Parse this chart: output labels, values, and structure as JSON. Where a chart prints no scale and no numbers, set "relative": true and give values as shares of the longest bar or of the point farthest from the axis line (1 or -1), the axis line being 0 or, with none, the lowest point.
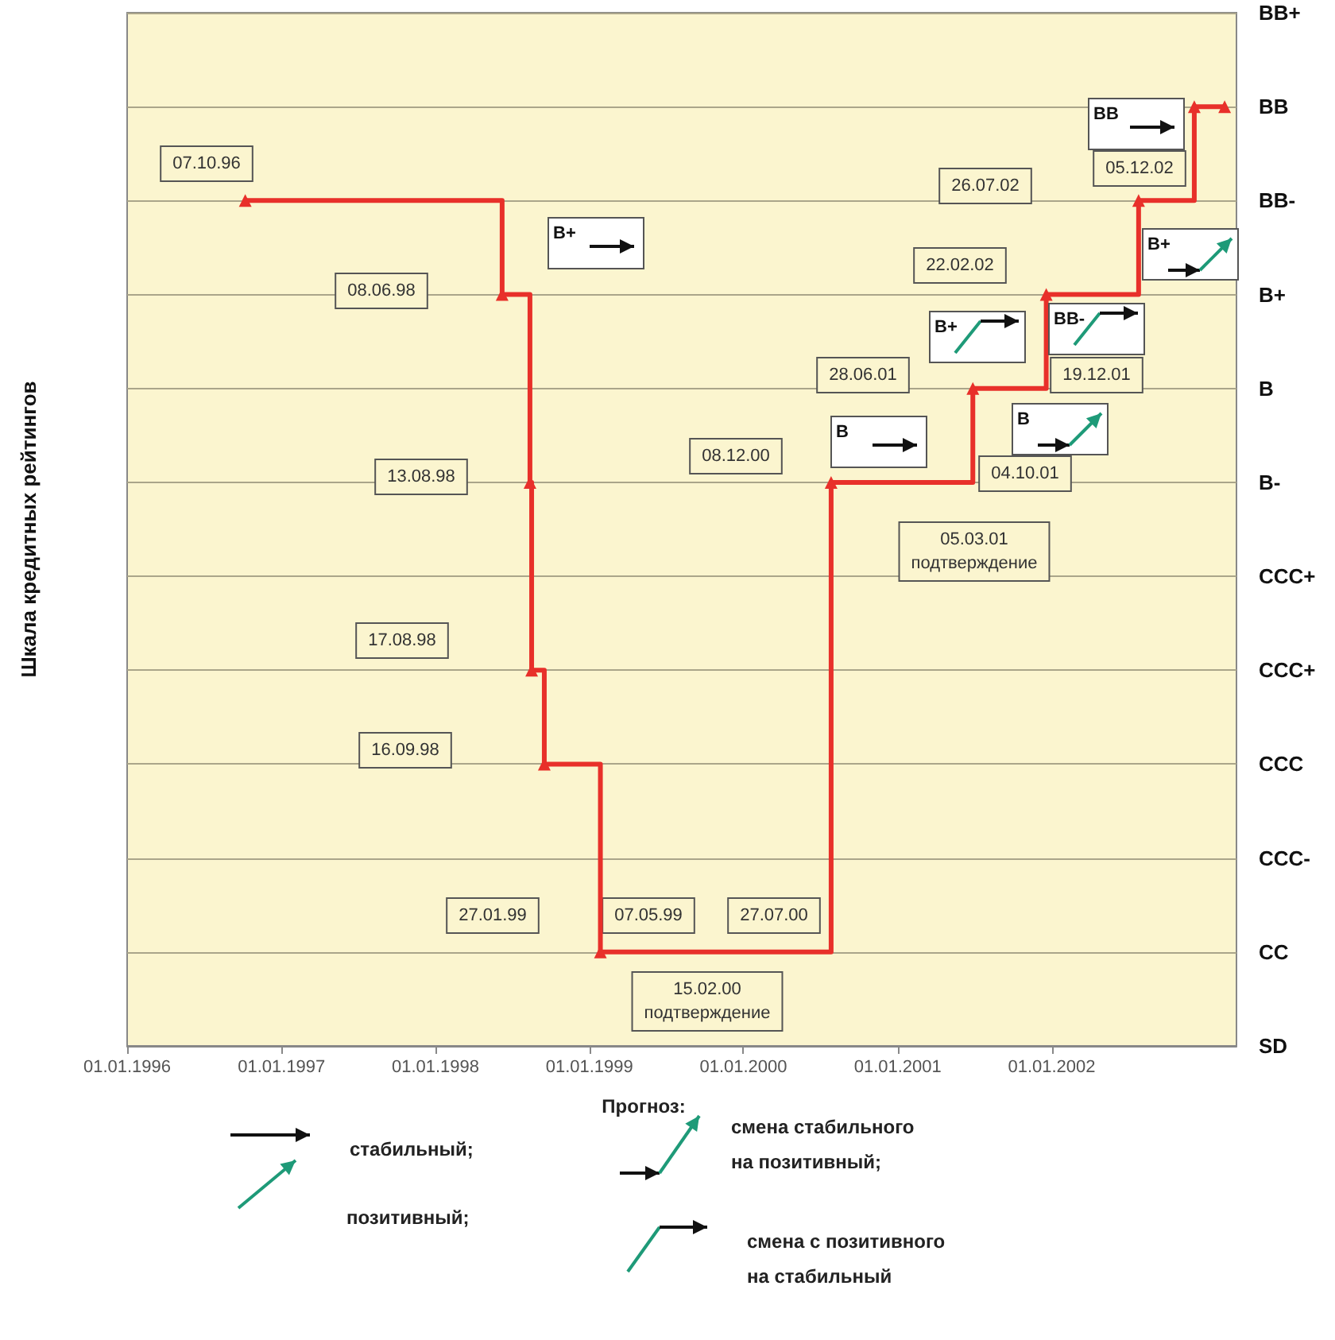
{
  "chart_data": {
    "type": "step",
    "ylabel": "Шкала кредитных рейтингов",
    "xlim": [
      "1996-01-01",
      "2003-03-15"
    ],
    "xticks": [
      {
        "value": "1996-01-01",
        "label": "01.01.1996"
      },
      {
        "value": "1997-01-01",
        "label": "01.01.1997"
      },
      {
        "value": "1998-01-01",
        "label": "01.01.1998"
      },
      {
        "value": "1999-01-01",
        "label": "01.01.1999"
      },
      {
        "value": "2000-01-01",
        "label": "01.01.2000"
      },
      {
        "value": "2001-01-01",
        "label": "01.01.2001"
      },
      {
        "value": "2002-01-01",
        "label": "01.01.2002"
      }
    ],
    "relative": true,
    "grid": "y",
    "marker": "triangle",
    "line_style": "solid",
    "series": [
      {
        "color": "#e8302a",
        "x": [
          "1996-10-07",
          "1998-06-08",
          "1998-08-13",
          "1998-08-17",
          "1998-09-16",
          "1999-01-27",
          "2000-07-27",
          "2001-06-28",
          "2001-12-19",
          "2002-07-26",
          "2002-12-05",
          "2003-02-15"
        ],
        "values": [
          0.9,
          0.8,
          0.6,
          0.4,
          0.3,
          0.1,
          0.6,
          0.7,
          0.8,
          0.9,
          1,
          1
        ]
      }
    ],
    "annotations": [
      "07.10.96",
      "08.06.98",
      "13.08.98",
      "17.08.98",
      "16.09.98",
      "27.01.99",
      "07.05.99",
      "27.07.00",
      "15.02.00\nподтверждение",
      "08.12.00",
      "05.03.01\nподтверждение",
      "04.10.01",
      "28.06.01",
      "19.12.01",
      "22.02.02",
      "26.07.02",
      "05.12.02",
      "B+",
      "B",
      "B+",
      "B",
      "BB-",
      "B+",
      "BB",
      "Прогноз:",
      "стабильный;",
      "позитивный;",
      "смена стабильного\nна позитивный;",
      "смена с позитивного\nна стабильный",
      "BB+",
      "BB",
      "BB-",
      "B+",
      "B",
      "B-",
      "CCC+",
      "CCC+",
      "CCC",
      "CCC-",
      "CC",
      "SD"
    ]
  }
}
